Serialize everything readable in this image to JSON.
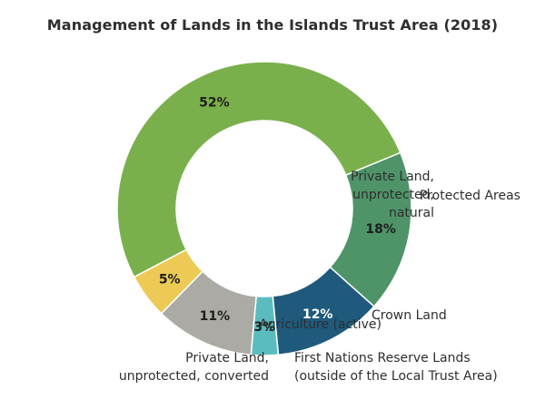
{
  "chart_data": {
    "type": "pie",
    "title": "Management of Lands in the Islands Trust Area (2018)",
    "slices": [
      {
        "label_lines": [
          "Protected Areas"
        ],
        "value": 18,
        "value_label": "18%",
        "color": "#4f9468",
        "pct_color": "#1e1e1e"
      },
      {
        "label_lines": [
          "Crown Land"
        ],
        "value": 12,
        "value_label": "12%",
        "color": "#1f5a7c",
        "pct_color": "#ffffff"
      },
      {
        "label_lines": [
          "First Nations Reserve Lands",
          "(outside of the Local Trust Area)"
        ],
        "value": 3,
        "value_label": "3%",
        "color": "#5bbcc0",
        "pct_color": "#1e1e1e"
      },
      {
        "label_lines": [
          "Private Land,",
          "unprotected, converted"
        ],
        "value": 11,
        "value_label": "11%",
        "color": "#abaaa4",
        "pct_color": "#1e1e1e"
      },
      {
        "label_lines": [
          "Agriculture (active)"
        ],
        "value": 5,
        "value_label": "5%",
        "color": "#ecca55",
        "pct_color": "#1e1e1e"
      },
      {
        "label_lines": [
          "Private Land,",
          "unprotected,",
          "natural"
        ],
        "value": 52,
        "value_label": "52%",
        "color": "#7ab04c",
        "pct_color": "#1e1e1e"
      }
    ]
  }
}
